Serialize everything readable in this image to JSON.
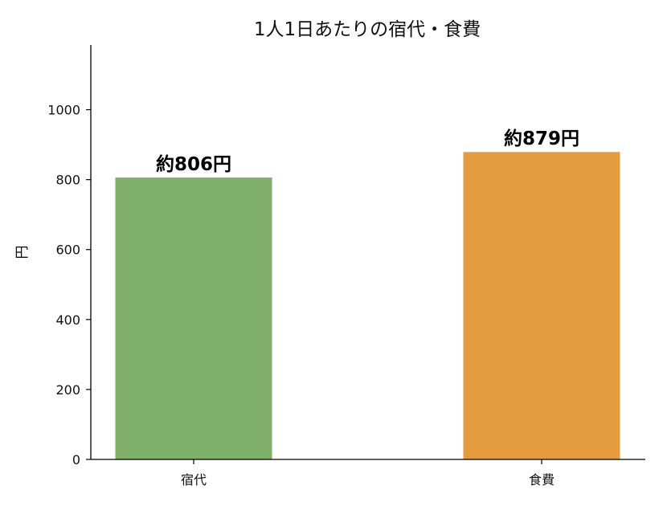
{
  "chart_data": {
    "type": "bar",
    "title": "1人1日あたりの宿代・食費",
    "xlabel": "",
    "ylabel": "円",
    "categories": [
      "宿代",
      "食費"
    ],
    "values": [
      806,
      879
    ],
    "value_labels": [
      "約806円",
      "約879円"
    ],
    "colors": [
      "#7faf69",
      "#e59b40"
    ],
    "ylim": [
      0,
      1185
    ],
    "yticks": [
      0,
      200,
      400,
      600,
      800,
      1000
    ],
    "grid": false,
    "legend": "none"
  }
}
